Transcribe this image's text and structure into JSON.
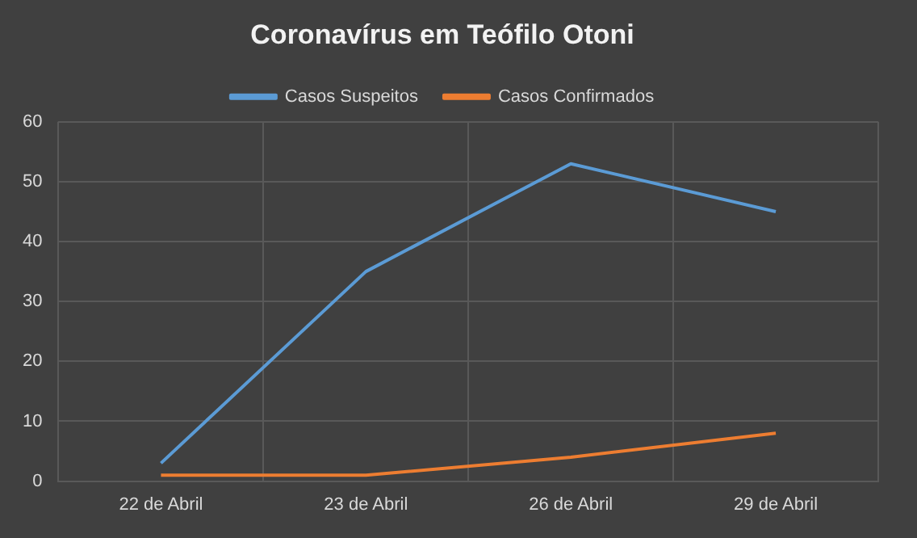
{
  "chart_data": {
    "type": "line",
    "title": "Coronavírus em Teófilo Otoni",
    "categories": [
      "22 de Abril",
      "23 de Abril",
      "26 de Abril",
      "29 de Abril"
    ],
    "series": [
      {
        "name": "Casos Suspeitos",
        "color": "#5b9bd5",
        "values": [
          3,
          35,
          53,
          45
        ]
      },
      {
        "name": "Casos Confirmados",
        "color": "#ed7d31",
        "values": [
          1,
          1,
          4,
          8
        ]
      }
    ],
    "ylim": [
      0,
      60
    ],
    "yticks": [
      0,
      10,
      20,
      30,
      40,
      50,
      60
    ],
    "grid": true,
    "legend": "top",
    "marker": "none",
    "line_style": "solid"
  }
}
